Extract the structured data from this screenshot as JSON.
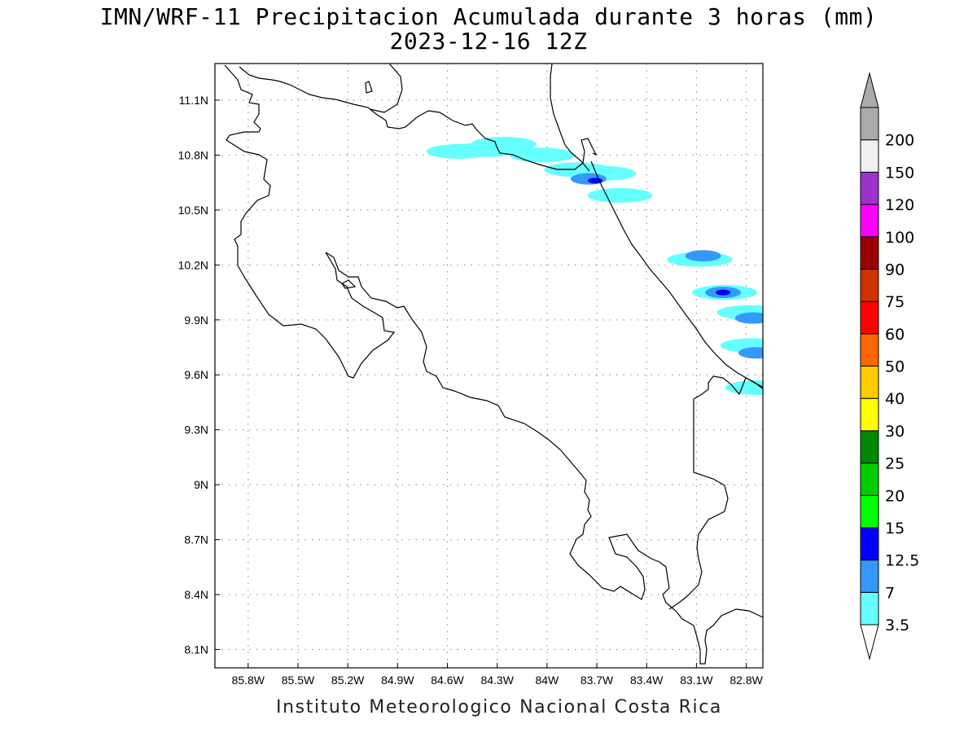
{
  "title": {
    "line1": "IMN/WRF-11 Precipitacion Acumulada durante 3 horas (mm)",
    "line2": "2023-12-16 12Z"
  },
  "footer": "Instituto Meteorologico Nacional Costa Rica",
  "map": {
    "lon_range": [
      -86.0,
      -82.7
    ],
    "lat_range": [
      8.0,
      11.3
    ],
    "lon_ticks": [
      {
        "value": -85.8,
        "label": "85.8W"
      },
      {
        "value": -85.5,
        "label": "85.5W"
      },
      {
        "value": -85.2,
        "label": "85.2W"
      },
      {
        "value": -84.9,
        "label": "84.9W"
      },
      {
        "value": -84.6,
        "label": "84.6W"
      },
      {
        "value": -84.3,
        "label": "84.3W"
      },
      {
        "value": -84.0,
        "label": "84W"
      },
      {
        "value": -83.7,
        "label": "83.7W"
      },
      {
        "value": -83.4,
        "label": "83.4W"
      },
      {
        "value": -83.1,
        "label": "83.1W"
      },
      {
        "value": -82.8,
        "label": "82.8W"
      }
    ],
    "lat_ticks": [
      {
        "value": 11.1,
        "label": "11.1N"
      },
      {
        "value": 10.8,
        "label": "10.8N"
      },
      {
        "value": 10.5,
        "label": "10.5N"
      },
      {
        "value": 10.2,
        "label": "10.2N"
      },
      {
        "value": 9.9,
        "label": "9.9N"
      },
      {
        "value": 9.6,
        "label": "9.6N"
      },
      {
        "value": 9.3,
        "label": "9.3N"
      },
      {
        "value": 9.0,
        "label": "9N"
      },
      {
        "value": 8.7,
        "label": "8.7N"
      },
      {
        "value": 8.4,
        "label": "8.4N"
      },
      {
        "value": 8.1,
        "label": "8.1N"
      }
    ],
    "grid": "dotted",
    "colors": {
      "coast": "#000000",
      "grid": "#999999",
      "frame": "#000000"
    }
  },
  "colorbar": {
    "levels": [
      {
        "label": "3.5",
        "color": "#66ffff"
      },
      {
        "label": "7",
        "color": "#3399ff"
      },
      {
        "label": "12.5",
        "color": "#0000ff"
      },
      {
        "label": "15",
        "color": "#00ff00"
      },
      {
        "label": "20",
        "color": "#00cc00"
      },
      {
        "label": "25",
        "color": "#008800"
      },
      {
        "label": "30",
        "color": "#ffff00"
      },
      {
        "label": "40",
        "color": "#ffcc00"
      },
      {
        "label": "50",
        "color": "#ff6600"
      },
      {
        "label": "60",
        "color": "#ff0000"
      },
      {
        "label": "75",
        "color": "#cc3300"
      },
      {
        "label": "90",
        "color": "#990000"
      },
      {
        "label": "100",
        "color": "#ff00ff"
      },
      {
        "label": "120",
        "color": "#9933cc"
      },
      {
        "label": "150",
        "color": "#f0f0f0"
      },
      {
        "label": "200",
        "color": "#aaaaaa"
      }
    ],
    "under_color": "#ffffff",
    "over_color": "#aaaaaa"
  },
  "precip_cells": [
    {
      "lon": -84.37,
      "lat": 10.83,
      "level": "3.5"
    },
    {
      "lon": -84.53,
      "lat": 10.82,
      "level": "3.5"
    },
    {
      "lon": -84.26,
      "lat": 10.86,
      "level": "3.5"
    },
    {
      "lon": -84.03,
      "lat": 10.8,
      "level": "3.5"
    },
    {
      "lon": -83.82,
      "lat": 10.72,
      "level": "3.5"
    },
    {
      "lon": -83.66,
      "lat": 10.7,
      "level": "3.5"
    },
    {
      "lon": -83.56,
      "lat": 10.58,
      "level": "3.5"
    },
    {
      "lon": -83.75,
      "lat": 10.67,
      "level": "7"
    },
    {
      "lon": -83.71,
      "lat": 10.66,
      "level": "12.5"
    },
    {
      "lon": -83.08,
      "lat": 10.23,
      "level": "3.5"
    },
    {
      "lon": -83.06,
      "lat": 10.25,
      "level": "7"
    },
    {
      "lon": -82.93,
      "lat": 10.05,
      "level": "3.5"
    },
    {
      "lon": -82.94,
      "lat": 10.05,
      "level": "7"
    },
    {
      "lon": -82.94,
      "lat": 10.05,
      "level": "12.5"
    },
    {
      "lon": -82.78,
      "lat": 9.94,
      "level": "3.5"
    },
    {
      "lon": -82.76,
      "lat": 9.91,
      "level": "7"
    },
    {
      "lon": -82.76,
      "lat": 9.76,
      "level": "3.5"
    },
    {
      "lon": -82.74,
      "lat": 9.72,
      "level": "7"
    },
    {
      "lon": -82.73,
      "lat": 9.53,
      "level": "3.5"
    }
  ]
}
